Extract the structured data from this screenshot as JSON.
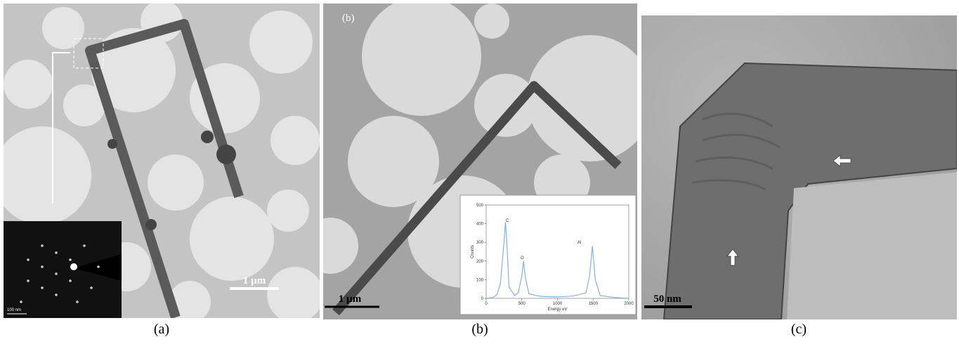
{
  "panels": [
    {
      "caption": "(a)",
      "scale_bar": "1 µm",
      "inset_scale_bar": "100 nm"
    },
    {
      "caption": "(b)",
      "label": "(b)",
      "scale_bar": "1 µm",
      "inset_chart": {
        "type": "line",
        "x_label": "Energy eV",
        "y_label": "Counts",
        "peak_labels": [
          "C",
          "O",
          "Al"
        ],
        "xlim": [
          0,
          2000
        ],
        "xticks": [
          0,
          500,
          1000,
          1500,
          2000
        ],
        "ylim": [
          0,
          500
        ],
        "yticks": [
          0,
          100,
          200,
          300,
          400,
          500
        ],
        "series": [
          {
            "color": "#7fb3e0",
            "x": [
              0,
              100,
              150,
              200,
              250,
              270,
              290,
              320,
              400,
              450,
              500,
              525,
              550,
              600,
              700,
              800,
              1000,
              1200,
              1300,
              1400,
              1450,
              1490,
              1530,
              1600,
              1800,
              2000
            ],
            "values": [
              0,
              5,
              20,
              80,
              300,
              410,
              300,
              60,
              15,
              30,
              120,
              200,
              110,
              25,
              15,
              10,
              8,
              12,
              20,
              30,
              120,
              280,
              100,
              15,
              5,
              0
            ]
          }
        ]
      }
    },
    {
      "caption": "(c)",
      "scale_bar": "50 nm"
    }
  ]
}
